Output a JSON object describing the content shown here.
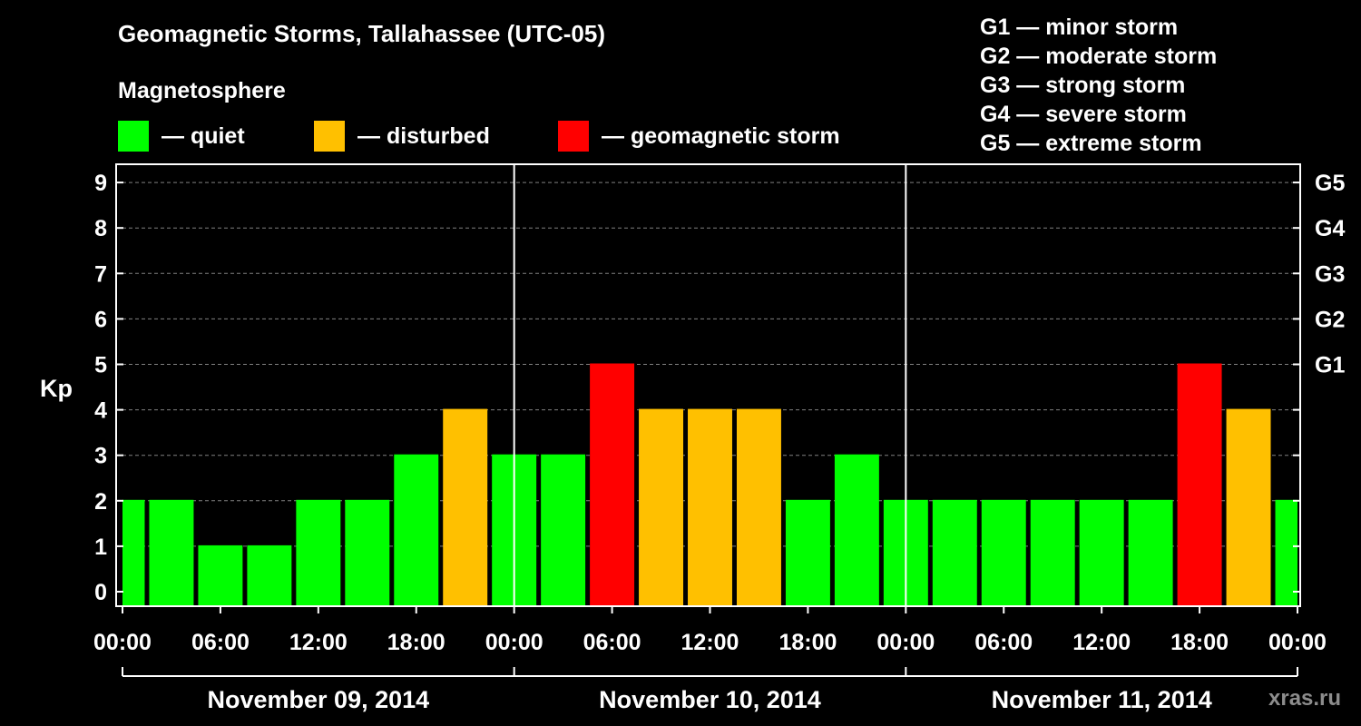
{
  "title": "Geomagnetic Storms, Tallahassee (UTC-05)",
  "subtitle": "Magnetosphere",
  "legend": [
    {
      "label": "— quiet",
      "color": "#00ff00"
    },
    {
      "label": "— disturbed",
      "color": "#ffc000"
    },
    {
      "label": "— geomagnetic storm",
      "color": "#ff0000"
    }
  ],
  "g_levels": [
    "G1 — minor storm",
    "G2 — moderate storm",
    "G3 — strong storm",
    "G4 — severe storm",
    "G5 — extreme storm"
  ],
  "watermark": "xras.ru",
  "chart_data": {
    "type": "bar",
    "ylabel": "Kp",
    "ylim": [
      0,
      9
    ],
    "y_ticks": [
      "0",
      "1",
      "2",
      "3",
      "4",
      "5",
      "6",
      "7",
      "8",
      "9"
    ],
    "right_ticks": [
      "G1",
      "G2",
      "G3",
      "G4",
      "G5"
    ],
    "x_ticks": [
      "00:00",
      "06:00",
      "12:00",
      "18:00",
      "00:00",
      "06:00",
      "12:00",
      "18:00",
      "00:00",
      "06:00",
      "12:00",
      "18:00",
      "00:00"
    ],
    "days": [
      "November 09, 2014",
      "November 10, 2014",
      "November 11, 2014"
    ],
    "interval_hours": 3,
    "values": [
      2,
      2,
      1,
      1,
      2,
      2,
      3,
      4,
      3,
      3,
      5,
      4,
      4,
      4,
      2,
      3,
      2,
      2,
      2,
      2,
      2,
      2,
      5,
      4,
      2
    ],
    "colors": {
      "quiet": "#00ff00",
      "disturbed": "#ffc000",
      "storm": "#ff0000"
    },
    "grid": "dashed horizontal at each Kp level"
  }
}
